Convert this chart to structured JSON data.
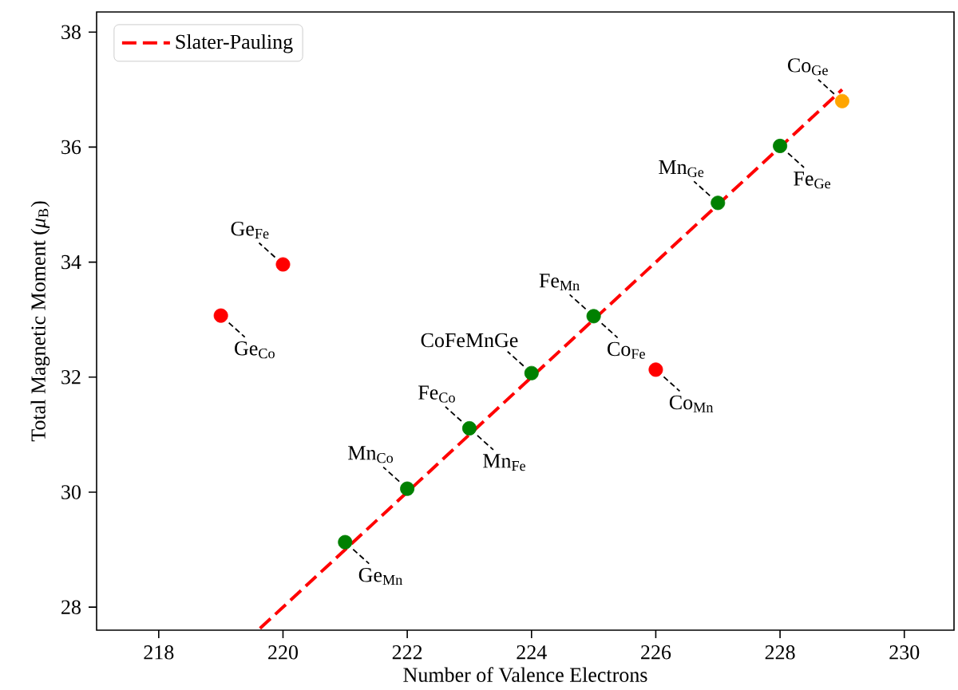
{
  "chart_data": {
    "type": "scatter",
    "xlabel": "Number of Valence Electrons",
    "ylabel": "Total Magnetic Moment (*μ*$_{B}$)",
    "xlim": [
      217,
      230.8
    ],
    "ylim": [
      27.6,
      38.35
    ],
    "xticks": [
      218,
      220,
      222,
      224,
      226,
      228,
      230
    ],
    "yticks": [
      28,
      30,
      32,
      34,
      36,
      38
    ],
    "legend": "top left",
    "series": [
      {
        "type": "line",
        "name": "Slater-Pauling",
        "color": "#ff0000",
        "line_style": "dashed",
        "marker": "none",
        "x": [
          219.63,
          229
        ],
        "values": [
          27.63,
          37
        ]
      },
      {
        "color": "#008000",
        "marker": "circle",
        "x": [
          221,
          222,
          223,
          224,
          225,
          227,
          228
        ],
        "values": [
          29.13,
          30.06,
          31.11,
          32.07,
          33.06,
          35.03,
          36.02
        ]
      },
      {
        "color": "#ff0000",
        "marker": "circle",
        "x": [
          219,
          220,
          226
        ],
        "values": [
          33.07,
          33.96,
          32.13
        ]
      },
      {
        "color": "#ffa500",
        "marker": "circle",
        "x": [
          229
        ],
        "values": [
          36.8
        ]
      }
    ],
    "annotations": [
      {
        "text": "Ge$_{Fe}$",
        "x": 220,
        "y": 33.96
      },
      {
        "text": "Ge$_{Co}$",
        "x": 219,
        "y": 33.07
      },
      {
        "text": "Ge$_{Mn}$",
        "x": 221,
        "y": 29.13
      },
      {
        "text": "Mn$_{Co}$",
        "x": 222,
        "y": 30.06
      },
      {
        "text": "Fe$_{Co}$",
        "x": 223,
        "y": 31.11
      },
      {
        "text": "Mn$_{Fe}$",
        "x": 223,
        "y": 31.11
      },
      {
        "text": "CoFeMnGe",
        "x": 224,
        "y": 32.07
      },
      {
        "text": "Fe$_{Mn}$",
        "x": 225,
        "y": 33.06
      },
      {
        "text": "Co$_{Fe}$",
        "x": 225,
        "y": 33.06
      },
      {
        "text": "Co$_{Mn}$",
        "x": 226,
        "y": 32.13
      },
      {
        "text": "Mn$_{Ge}$",
        "x": 227,
        "y": 35.03
      },
      {
        "text": "Fe$_{Ge}$",
        "x": 228,
        "y": 36.02
      },
      {
        "text": "Co$_{Ge}$",
        "x": 229,
        "y": 36.8
      }
    ]
  }
}
